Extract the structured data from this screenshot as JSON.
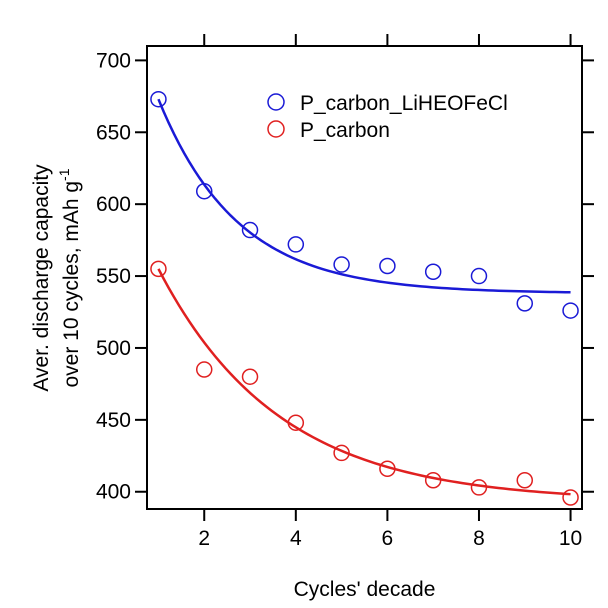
{
  "chart_data": {
    "type": "scatter",
    "xlabel": "Cycles' decade",
    "ylabel_line1": "Aver. discharge capacity",
    "ylabel_line2": "over 10 cycles, mAh g",
    "ylabel_superscript": "-1",
    "xlim": [
      0.75,
      10.25
    ],
    "ylim": [
      388,
      710
    ],
    "x_ticks": [
      2,
      4,
      6,
      8,
      10
    ],
    "x_tick_labels": [
      "2",
      "4",
      "6",
      "8",
      "10"
    ],
    "y_ticks": [
      400,
      450,
      500,
      550,
      600,
      650,
      700
    ],
    "y_tick_labels": [
      "400",
      "450",
      "500",
      "550",
      "600",
      "650",
      "700"
    ],
    "grid": false,
    "legend_position": "top-right",
    "series": [
      {
        "name": "P_carbon_LiHEOFeCl",
        "color": "#1a1ad6",
        "x": [
          1,
          2,
          3,
          4,
          5,
          6,
          7,
          8,
          9,
          10
        ],
        "y": [
          673,
          609,
          582,
          572,
          558,
          557,
          553,
          550,
          531,
          526
        ],
        "fit": {
          "type": "exponential",
          "asymptote": 538,
          "amplitude": 225,
          "rate": 0.58
        }
      },
      {
        "name": "P_carbon",
        "color": "#e02020",
        "x": [
          1,
          2,
          3,
          4,
          5,
          6,
          7,
          8,
          9,
          10
        ],
        "y": [
          555,
          485,
          480,
          448,
          427,
          416,
          408,
          403,
          408,
          396
        ],
        "fit": {
          "type": "exponential",
          "asymptote": 393,
          "amplitude": 213,
          "rate": 0.38
        }
      }
    ]
  }
}
